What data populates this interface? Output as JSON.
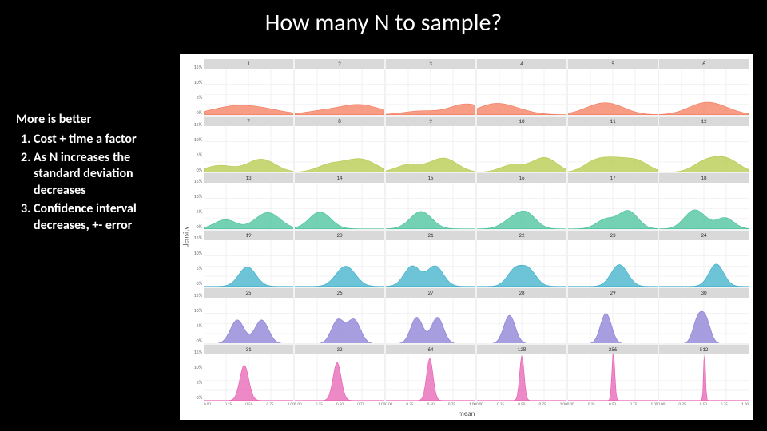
{
  "title": "How many N to sample?",
  "sidebar": {
    "heading": "More is better",
    "items": [
      "Cost + time a factor",
      "As N increases the standard deviation decreases",
      "Confidence interval decreases, +- error"
    ]
  },
  "chart": {
    "type": "small-multiples-density",
    "rows": 6,
    "cols": 6,
    "background_color": "#ffffff",
    "panel_background": "#ffffff",
    "outer_background": "#f2f2f2",
    "strip_background": "#d9d9d9",
    "grid_color": "#e8e8e8",
    "x_label": "mean",
    "y_label": "density",
    "x_ticks": [
      "0.00",
      "0.25",
      "0.50",
      "0.75",
      "1.00"
    ],
    "y_ticks": [
      "0%",
      "5%",
      "10%",
      "15%"
    ],
    "xlim": [
      0,
      1
    ],
    "ylim": [
      0,
      0.17
    ],
    "row_colors": [
      "#f47b5c",
      "#b4c948",
      "#45c19a",
      "#3eb0c9",
      "#8a7dd6",
      "#e861b4"
    ],
    "panels": [
      {
        "n": "1",
        "sd": 0.5,
        "peak": 0.035
      },
      {
        "n": "2",
        "sd": 0.45,
        "peak": 0.038
      },
      {
        "n": "3",
        "sd": 0.42,
        "peak": 0.04
      },
      {
        "n": "4",
        "sd": 0.4,
        "peak": 0.042
      },
      {
        "n": "5",
        "sd": 0.38,
        "peak": 0.044
      },
      {
        "n": "6",
        "sd": 0.36,
        "peak": 0.046
      },
      {
        "n": "7",
        "sd": 0.34,
        "peak": 0.048
      },
      {
        "n": "8",
        "sd": 0.32,
        "peak": 0.05
      },
      {
        "n": "9",
        "sd": 0.31,
        "peak": 0.052
      },
      {
        "n": "10",
        "sd": 0.3,
        "peak": 0.054
      },
      {
        "n": "11",
        "sd": 0.29,
        "peak": 0.056
      },
      {
        "n": "12",
        "sd": 0.28,
        "peak": 0.058
      },
      {
        "n": "13",
        "sd": 0.27,
        "peak": 0.06
      },
      {
        "n": "14",
        "sd": 0.26,
        "peak": 0.062
      },
      {
        "n": "15",
        "sd": 0.25,
        "peak": 0.064
      },
      {
        "n": "16",
        "sd": 0.24,
        "peak": 0.066
      },
      {
        "n": "17",
        "sd": 0.23,
        "peak": 0.068
      },
      {
        "n": "18",
        "sd": 0.22,
        "peak": 0.07
      },
      {
        "n": "19",
        "sd": 0.21,
        "peak": 0.072
      },
      {
        "n": "20",
        "sd": 0.21,
        "peak": 0.074
      },
      {
        "n": "21",
        "sd": 0.2,
        "peak": 0.076
      },
      {
        "n": "22",
        "sd": 0.19,
        "peak": 0.078
      },
      {
        "n": "23",
        "sd": 0.19,
        "peak": 0.08
      },
      {
        "n": "24",
        "sd": 0.18,
        "peak": 0.082
      },
      {
        "n": "25",
        "sd": 0.17,
        "peak": 0.088
      },
      {
        "n": "26",
        "sd": 0.16,
        "peak": 0.092
      },
      {
        "n": "27",
        "sd": 0.15,
        "peak": 0.098
      },
      {
        "n": "28",
        "sd": 0.14,
        "peak": 0.105
      },
      {
        "n": "29",
        "sd": 0.13,
        "peak": 0.112
      },
      {
        "n": "30",
        "sd": 0.12,
        "peak": 0.12
      },
      {
        "n": "31",
        "sd": 0.11,
        "peak": 0.13
      },
      {
        "n": "32",
        "sd": 0.1,
        "peak": 0.14
      },
      {
        "n": "64",
        "sd": 0.08,
        "peak": 0.155
      },
      {
        "n": "128",
        "sd": 0.055,
        "peak": 0.165
      },
      {
        "n": "256",
        "sd": 0.035,
        "peak": 0.17
      },
      {
        "n": "512",
        "sd": 0.022,
        "peak": 0.17
      }
    ],
    "mean_center": 0.5,
    "tick_fontsize": 6,
    "label_fontsize": 9,
    "strip_fontsize": 7
  },
  "slide_background": "#000000",
  "title_color": "#ffffff",
  "title_fontsize": 30,
  "sidebar_color": "#ffffff",
  "sidebar_fontsize": 16
}
